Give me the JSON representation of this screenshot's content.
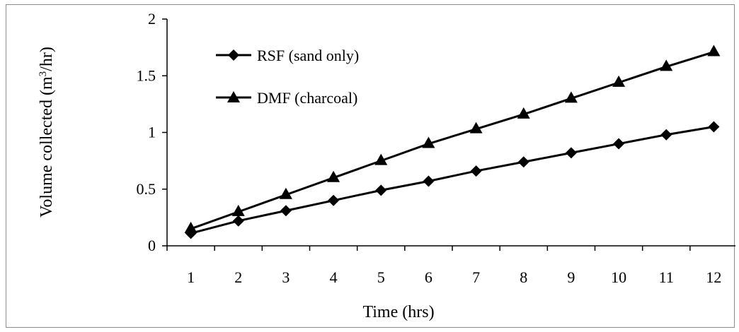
{
  "chart_data": {
    "type": "line",
    "title": "",
    "xlabel": "Time (hrs)",
    "ylabel": "Volume collected (m3/hr)",
    "ylabel_parts": {
      "pre": "Volume collected (m",
      "sup": "3",
      "post": "/hr)"
    },
    "x": [
      1,
      2,
      3,
      4,
      5,
      6,
      7,
      8,
      9,
      10,
      11,
      12
    ],
    "xticks": [
      "1",
      "2",
      "3",
      "4",
      "5",
      "6",
      "7",
      "8",
      "9",
      "10",
      "11",
      "12"
    ],
    "yticks": [
      "0",
      "0.5",
      "1",
      "1.5",
      "2"
    ],
    "ytick_values": [
      0,
      0.5,
      1,
      1.5,
      2
    ],
    "ylim": [
      0,
      2
    ],
    "grid": false,
    "legend_position": "top-left",
    "series": [
      {
        "name": "RSF (sand only)",
        "marker": "diamond",
        "color": "#000000",
        "values": [
          0.11,
          0.22,
          0.31,
          0.4,
          0.49,
          0.57,
          0.66,
          0.74,
          0.82,
          0.9,
          0.98,
          1.05
        ]
      },
      {
        "name": "DMF (charcoal)",
        "marker": "triangle",
        "color": "#000000",
        "values": [
          0.15,
          0.3,
          0.45,
          0.6,
          0.75,
          0.9,
          1.03,
          1.16,
          1.3,
          1.44,
          1.58,
          1.71
        ]
      }
    ]
  }
}
